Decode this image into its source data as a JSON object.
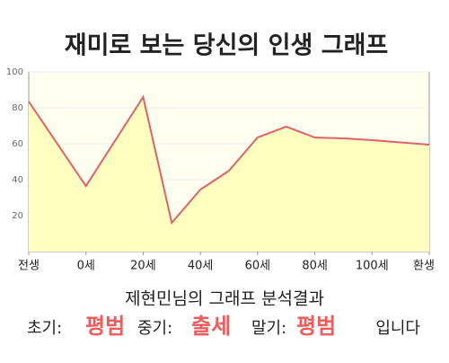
{
  "chart_data": {
    "type": "line",
    "title": "재미로 보는 당신의 인생 그래프",
    "x": [
      -20,
      0,
      20,
      30,
      40,
      50,
      60,
      70,
      80,
      90,
      100,
      120
    ],
    "values": [
      83.5,
      36.5,
      86,
      16,
      34.5,
      45,
      63.5,
      69.5,
      63.5,
      63,
      62,
      59.5
    ],
    "color": "#e0606c",
    "fill": "#ffffc0",
    "xlim": [
      -20,
      120
    ],
    "xticks": [
      {
        "value": -20,
        "label": "전생"
      },
      {
        "value": 0,
        "label": "0세"
      },
      {
        "value": 20,
        "label": "20세"
      },
      {
        "value": 40,
        "label": "40세"
      },
      {
        "value": 60,
        "label": "60세"
      },
      {
        "value": 80,
        "label": "80세"
      },
      {
        "value": 100,
        "label": "100세"
      },
      {
        "value": 120,
        "label": "환생"
      }
    ],
    "ylim": [
      0,
      100
    ],
    "yticks": [
      20,
      40,
      60,
      80,
      100
    ],
    "grid": true
  },
  "result": {
    "heading": "제현민님의 그래프 분석결과",
    "items": [
      {
        "label": "초기:",
        "value": "평범"
      },
      {
        "label": "중기:",
        "value": "출세"
      },
      {
        "label": "말기:",
        "value": "평범"
      }
    ],
    "ending": "입니다"
  }
}
